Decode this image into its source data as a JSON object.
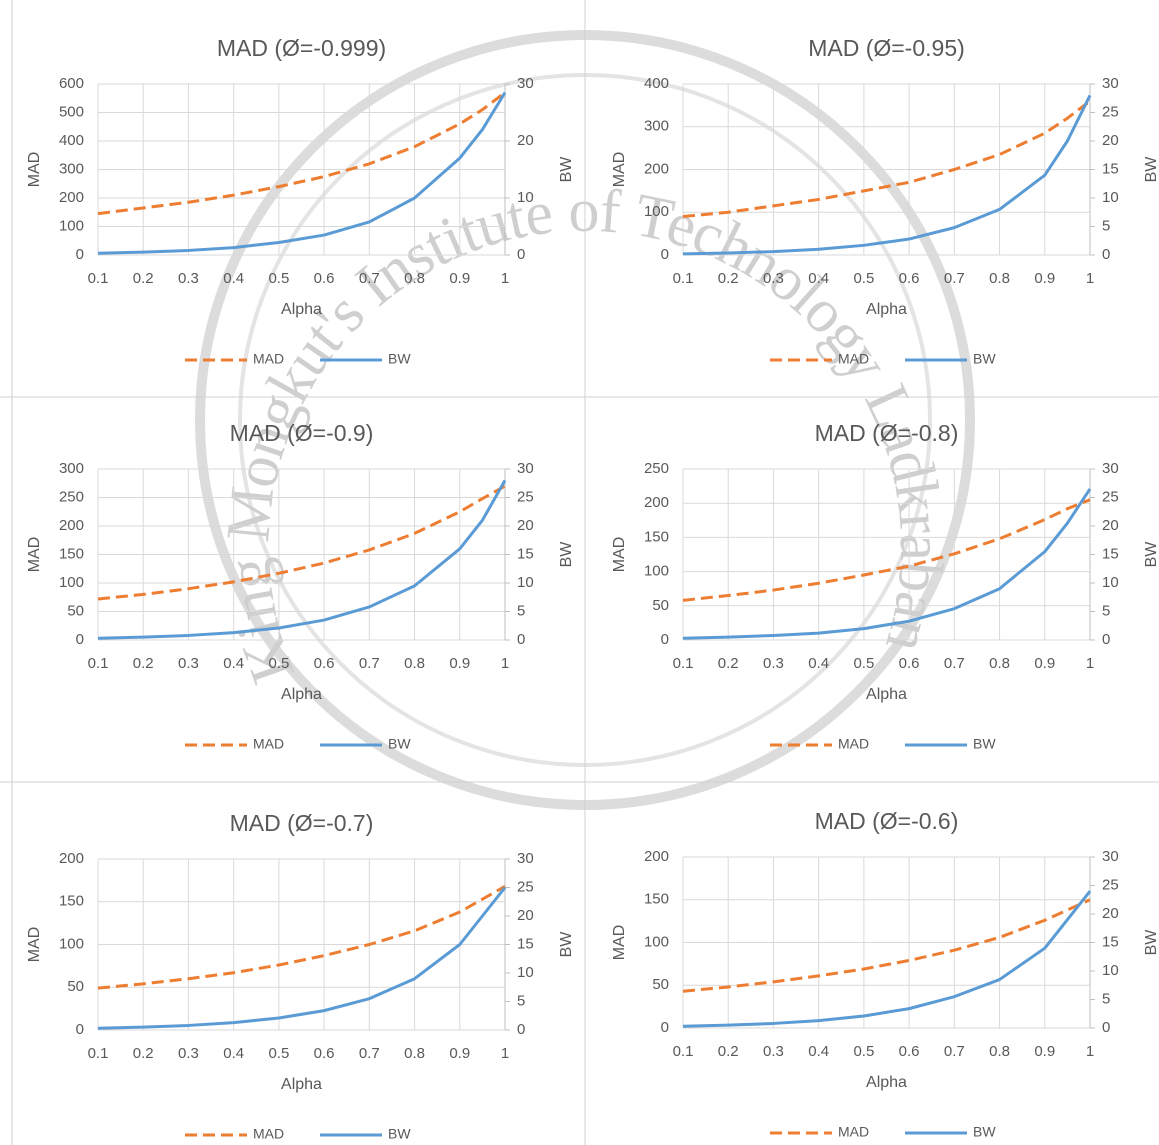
{
  "watermark": "King Mongkut's Institute of Technology Ladkrabang",
  "chart_data": [
    {
      "type": "line",
      "title": "MAD (Ø=-0.999)",
      "x_label": "Alpha",
      "y_label": "MAD",
      "y2_label": "BW",
      "x": [
        0.1,
        0.2,
        0.3,
        0.4,
        0.5,
        0.6,
        0.7,
        0.8,
        0.9,
        0.95,
        1
      ],
      "xlim": [
        0.1,
        1
      ],
      "xticks": [
        0.1,
        0.2,
        0.3,
        0.4,
        0.5,
        0.6,
        0.7,
        0.8,
        0.9,
        1
      ],
      "ylim": [
        0,
        600
      ],
      "yticks": [
        0,
        100,
        200,
        300,
        400,
        500,
        600
      ],
      "y2lim": [
        0,
        30
      ],
      "y2ticks": [
        0,
        10,
        20,
        30
      ],
      "grid": true,
      "legend": "bottom",
      "series": [
        {
          "name": "MAD",
          "color": "#ED7D31",
          "dashed": true,
          "values": [
            145,
            165,
            185,
            210,
            240,
            275,
            320,
            380,
            460,
            510,
            570
          ]
        },
        {
          "name": "BW",
          "color": "#5B9BD5",
          "axis": "y2",
          "values": [
            0.3,
            0.5,
            0.8,
            1.3,
            2.2,
            3.5,
            5.8,
            10,
            17,
            22,
            28.5
          ]
        }
      ]
    },
    {
      "type": "line",
      "title": "MAD (Ø=-0.95)",
      "x_label": "Alpha",
      "y_label": "MAD",
      "y2_label": "BW",
      "x": [
        0.1,
        0.2,
        0.3,
        0.4,
        0.5,
        0.6,
        0.7,
        0.8,
        0.9,
        0.95,
        1
      ],
      "xlim": [
        0.1,
        1
      ],
      "xticks": [
        0.1,
        0.2,
        0.3,
        0.4,
        0.5,
        0.6,
        0.7,
        0.8,
        0.9,
        1
      ],
      "ylim": [
        0,
        400
      ],
      "yticks": [
        0,
        100,
        200,
        300,
        400
      ],
      "y2lim": [
        0,
        30
      ],
      "y2ticks": [
        0,
        5,
        10,
        15,
        20,
        25,
        30
      ],
      "grid": true,
      "legend": "bottom",
      "series": [
        {
          "name": "MAD",
          "color": "#ED7D31",
          "dashed": true,
          "values": [
            90,
            100,
            115,
            130,
            150,
            170,
            200,
            235,
            285,
            320,
            360
          ]
        },
        {
          "name": "BW",
          "color": "#5B9BD5",
          "axis": "y2",
          "values": [
            0.2,
            0.35,
            0.6,
            1,
            1.7,
            2.8,
            4.8,
            8,
            14,
            20,
            28
          ]
        }
      ]
    },
    {
      "type": "line",
      "title": "MAD (Ø=-0.9)",
      "x_label": "Alpha",
      "y_label": "MAD",
      "y2_label": "BW",
      "x": [
        0.1,
        0.2,
        0.3,
        0.4,
        0.5,
        0.6,
        0.7,
        0.8,
        0.9,
        0.95,
        1
      ],
      "xlim": [
        0.1,
        1
      ],
      "xticks": [
        0.1,
        0.2,
        0.3,
        0.4,
        0.5,
        0.6,
        0.7,
        0.8,
        0.9,
        1
      ],
      "ylim": [
        0,
        300
      ],
      "yticks": [
        0,
        50,
        100,
        150,
        200,
        250,
        300
      ],
      "y2lim": [
        0,
        30
      ],
      "y2ticks": [
        0,
        5,
        10,
        15,
        20,
        25,
        30
      ],
      "grid": true,
      "legend": "bottom",
      "series": [
        {
          "name": "MAD",
          "color": "#ED7D31",
          "dashed": true,
          "values": [
            72,
            80,
            90,
            102,
            117,
            135,
            158,
            187,
            225,
            248,
            270
          ]
        },
        {
          "name": "BW",
          "color": "#5B9BD5",
          "axis": "y2",
          "values": [
            0.3,
            0.5,
            0.8,
            1.3,
            2.1,
            3.5,
            5.8,
            9.5,
            16,
            21,
            28
          ]
        }
      ]
    },
    {
      "type": "line",
      "title": "MAD (Ø=-0.8)",
      "x_label": "Alpha",
      "y_label": "MAD",
      "y2_label": "BW",
      "x": [
        0.1,
        0.2,
        0.3,
        0.4,
        0.5,
        0.6,
        0.7,
        0.8,
        0.9,
        0.95,
        1
      ],
      "xlim": [
        0.1,
        1
      ],
      "xticks": [
        0.1,
        0.2,
        0.3,
        0.4,
        0.5,
        0.6,
        0.7,
        0.8,
        0.9,
        1
      ],
      "ylim": [
        0,
        250
      ],
      "yticks": [
        0,
        50,
        100,
        150,
        200,
        250
      ],
      "y2lim": [
        0,
        30
      ],
      "y2ticks": [
        0,
        5,
        10,
        15,
        20,
        25,
        30
      ],
      "grid": true,
      "legend": "bottom",
      "series": [
        {
          "name": "MAD",
          "color": "#ED7D31",
          "dashed": true,
          "values": [
            58,
            65,
            73,
            83,
            95,
            108,
            126,
            148,
            176,
            192,
            205
          ]
        },
        {
          "name": "BW",
          "color": "#5B9BD5",
          "axis": "y2",
          "values": [
            0.3,
            0.5,
            0.8,
            1.2,
            2,
            3.3,
            5.5,
            9,
            15.5,
            20.5,
            26.5
          ]
        }
      ]
    },
    {
      "type": "line",
      "title": "MAD (Ø=-0.7)",
      "x_label": "Alpha",
      "y_label": "MAD",
      "y2_label": "BW",
      "x": [
        0.1,
        0.2,
        0.3,
        0.4,
        0.5,
        0.6,
        0.7,
        0.8,
        0.9,
        0.95,
        1
      ],
      "xlim": [
        0.1,
        1
      ],
      "xticks": [
        0.1,
        0.2,
        0.3,
        0.4,
        0.5,
        0.6,
        0.7,
        0.8,
        0.9,
        1
      ],
      "ylim": [
        0,
        200
      ],
      "yticks": [
        0,
        50,
        100,
        150,
        200
      ],
      "y2lim": [
        0,
        30
      ],
      "y2ticks": [
        0,
        5,
        10,
        15,
        20,
        25,
        30
      ],
      "grid": true,
      "legend": "bottom",
      "series": [
        {
          "name": "MAD",
          "color": "#ED7D31",
          "dashed": true,
          "values": [
            49,
            54,
            60,
            67,
            76,
            87,
            100,
            116,
            138,
            153,
            168
          ]
        },
        {
          "name": "BW",
          "color": "#5B9BD5",
          "axis": "y2",
          "values": [
            0.3,
            0.5,
            0.8,
            1.3,
            2.1,
            3.4,
            5.5,
            9,
            15,
            20,
            25
          ]
        }
      ]
    },
    {
      "type": "line",
      "title": "MAD (Ø=-0.6)",
      "x_label": "Alpha",
      "y_label": "MAD",
      "y2_label": "BW",
      "x": [
        0.1,
        0.2,
        0.3,
        0.4,
        0.5,
        0.6,
        0.7,
        0.8,
        0.9,
        0.95,
        1
      ],
      "xlim": [
        0.1,
        1
      ],
      "xticks": [
        0.1,
        0.2,
        0.3,
        0.4,
        0.5,
        0.6,
        0.7,
        0.8,
        0.9,
        1
      ],
      "ylim": [
        0,
        200
      ],
      "yticks": [
        0,
        50,
        100,
        150,
        200
      ],
      "y2lim": [
        0,
        30
      ],
      "y2ticks": [
        0,
        5,
        10,
        15,
        20,
        25,
        30
      ],
      "grid": true,
      "legend": "bottom",
      "series": [
        {
          "name": "MAD",
          "color": "#ED7D31",
          "dashed": true,
          "values": [
            43,
            48,
            54,
            61,
            69,
            79,
            91,
            106,
            126,
            138,
            150
          ]
        },
        {
          "name": "BW",
          "color": "#5B9BD5",
          "axis": "y2",
          "values": [
            0.3,
            0.5,
            0.8,
            1.3,
            2.1,
            3.4,
            5.5,
            8.5,
            14,
            19,
            24
          ]
        }
      ]
    }
  ]
}
